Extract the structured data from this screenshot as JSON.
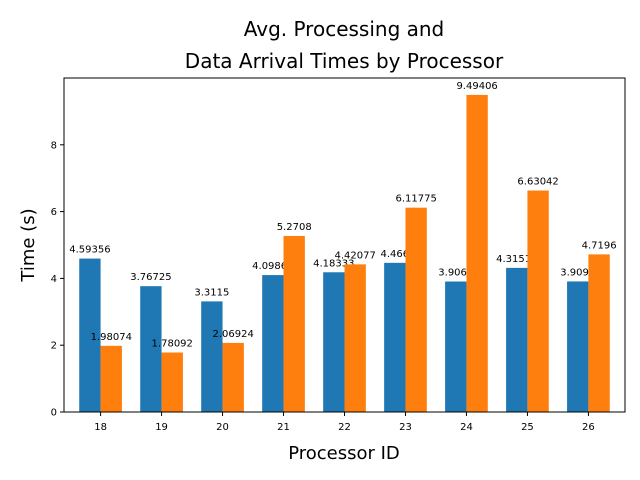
{
  "chart_data": {
    "type": "bar",
    "title_lines": [
      "Avg. Processing and",
      "Data Arrival Times by Processor"
    ],
    "xlabel": "Processor ID",
    "ylabel": "Time (s)",
    "ylim": [
      0,
      10
    ],
    "yticks": [
      0,
      2,
      4,
      6,
      8
    ],
    "ytick_labels": [
      "0",
      "2",
      "4",
      "6",
      "8"
    ],
    "grid": false,
    "legend": "none",
    "categories": [
      "18",
      "19",
      "20",
      "21",
      "22",
      "23",
      "24",
      "25",
      "26"
    ],
    "series": [
      {
        "color": "#1f77b4",
        "values": [
          4.59356,
          3.76725,
          3.3115,
          4.09867,
          4.18333,
          4.466,
          3.9067,
          4.31519,
          3.9092
        ],
        "labels": [
          "4.59356",
          "3.76725",
          "3.3115",
          "4.09867",
          "4.18333",
          "4.466",
          "3.9067",
          "4.31519",
          "3.9092"
        ]
      },
      {
        "color": "#ff7f0e",
        "values": [
          1.98074,
          1.78092,
          2.06924,
          5.2708,
          4.42077,
          6.11775,
          9.49406,
          6.63042,
          4.7196
        ],
        "labels": [
          "1.98074",
          "1.78092",
          "2.06924",
          "5.2708",
          "4.42077",
          "6.11775",
          "9.49406",
          "6.63042",
          "4.7196"
        ]
      }
    ]
  }
}
